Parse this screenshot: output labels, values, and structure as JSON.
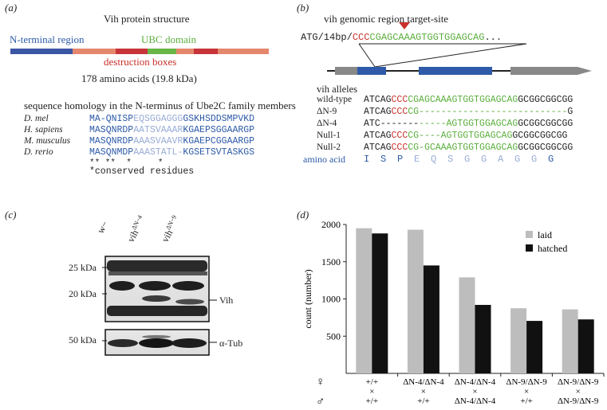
{
  "panels": {
    "a": "(a)",
    "b": "(b)",
    "c": "(c)",
    "d": "(d)"
  },
  "panel_a": {
    "title": "Vih protein structure",
    "n_terminal": "N-terminal region",
    "ubc": "UBC domain",
    "destruction": "destruction boxes",
    "length": "178 amino acids (19.8 kDa)",
    "homology_title": "sequence homology in the N-terminus of Ube2C family members",
    "species": [
      {
        "name": "D. mel",
        "seq_a": "MA-QNISP",
        "seq_b": "EQSGGAGGG",
        "seq_c": "GSKHSDDSMPVKD"
      },
      {
        "name": "H. sapiens",
        "seq_a": "MASQNRDP",
        "seq_b": "AATSVAAAR",
        "seq_c": "KGAEPSGGAARGP"
      },
      {
        "name": "M. musculus",
        "seq_a": "MASQNRDP",
        "seq_b": "AAASVAAVR",
        "seq_c": "KGAEPCGGAARGP"
      },
      {
        "name": "D. rerio",
        "seq_a": "MASQNMDP",
        "seq_b": "AAASTATL-",
        "seq_c": "KGSETSVTASKGS"
      }
    ],
    "stars": "** **  *     *",
    "conserved": "*conserved residues"
  },
  "panel_b": {
    "region_label": "vih genomic region target-site",
    "prefix": "ATG/14bp/",
    "target_red": "CCC",
    "target_green": "CGAGCAAAGTGGTGGAGCAG",
    "ellipsis": "...",
    "alleles_title": "vih alleles",
    "alleles": [
      {
        "name": "wild-type",
        "parts": [
          {
            "t": "ATCAG",
            "c": "black"
          },
          {
            "t": "CCC",
            "c": "red"
          },
          {
            "t": "CGAGCAAAGTGGTGGAGCAG",
            "c": "green"
          },
          {
            "t": "GCGGCGGCGG",
            "c": "black"
          }
        ]
      },
      {
        "name": "ΔN-9",
        "parts": [
          {
            "t": "ATCAG",
            "c": "black"
          },
          {
            "t": "CCC",
            "c": "red"
          },
          {
            "t": "CG---------------------------",
            "c": "green"
          },
          {
            "t": "G",
            "c": "black"
          }
        ]
      },
      {
        "name": "ΔN-4",
        "parts": [
          {
            "t": "ATC-------",
            "c": "black"
          },
          {
            "t": "-----AGTGGTGGAGCAG",
            "c": "green"
          },
          {
            "t": "GCGGCGGCGG",
            "c": "black"
          }
        ]
      },
      {
        "name": "Null-1",
        "parts": [
          {
            "t": "ATCAG",
            "c": "black"
          },
          {
            "t": "CCC",
            "c": "red"
          },
          {
            "t": "CG----AGTGGTGGAGCAG",
            "c": "green"
          },
          {
            "t": "GCGGCGGCGG",
            "c": "black"
          }
        ]
      },
      {
        "name": "Null-2",
        "parts": [
          {
            "t": "ATCAG",
            "c": "black"
          },
          {
            "t": "CCC",
            "c": "red"
          },
          {
            "t": "CG-GCAAAGTGGTGGAGCAG",
            "c": "green"
          },
          {
            "t": "GCGGCGGCGG",
            "c": "black"
          }
        ]
      }
    ],
    "amino_label": "amino acid",
    "amino_acids": [
      {
        "aa": "I",
        "c": "blue"
      },
      {
        "aa": "S",
        "c": "blue"
      },
      {
        "aa": "P",
        "c": "blue"
      },
      {
        "aa": "E",
        "c": "lightblue"
      },
      {
        "aa": "Q",
        "c": "lightblue"
      },
      {
        "aa": "S",
        "c": "lightblue"
      },
      {
        "aa": "G",
        "c": "lightblue"
      },
      {
        "aa": "G",
        "c": "lightblue"
      },
      {
        "aa": "A",
        "c": "lightblue"
      },
      {
        "aa": "G",
        "c": "lightblue"
      },
      {
        "aa": "G",
        "c": "lightblue"
      },
      {
        "aa": "G",
        "c": "blue"
      }
    ]
  },
  "panel_c": {
    "lanes": [
      "w−",
      "vih",
      "vih"
    ],
    "lane_sup": [
      "",
      "ΔN−4",
      "ΔN−9"
    ],
    "mw_top": [
      "25 kDa",
      "20 kDa"
    ],
    "mw_bottom": "50 kDa",
    "vih_label": "Vih",
    "tub_label": "α-Tub"
  },
  "chart_data": {
    "type": "bar",
    "ylabel": "count (number)",
    "ylim": [
      0,
      2000
    ],
    "yticks": [
      500,
      1000,
      1500,
      2000
    ],
    "categories": [
      {
        "female": "+/+",
        "male": "+/+"
      },
      {
        "female": "ΔN-4/ΔN-4",
        "male": "+/+"
      },
      {
        "female": "ΔN-4/ΔN-4",
        "male": "ΔN-4/ΔN-4"
      },
      {
        "female": "ΔN-9/ΔN-9",
        "male": "+/+"
      },
      {
        "female": "ΔN-9/ΔN-9",
        "male": "ΔN-9/ΔN-9"
      }
    ],
    "cross_symbol": "×",
    "female_symbol": "♀",
    "male_symbol": "♂",
    "series": [
      {
        "name": "laid",
        "color": "#bdbdbd",
        "values": [
          1950,
          1930,
          1290,
          875,
          860
        ]
      },
      {
        "name": "hatched",
        "color": "#111111",
        "values": [
          1880,
          1450,
          920,
          705,
          725
        ]
      }
    ],
    "legend_position": "top-right"
  }
}
